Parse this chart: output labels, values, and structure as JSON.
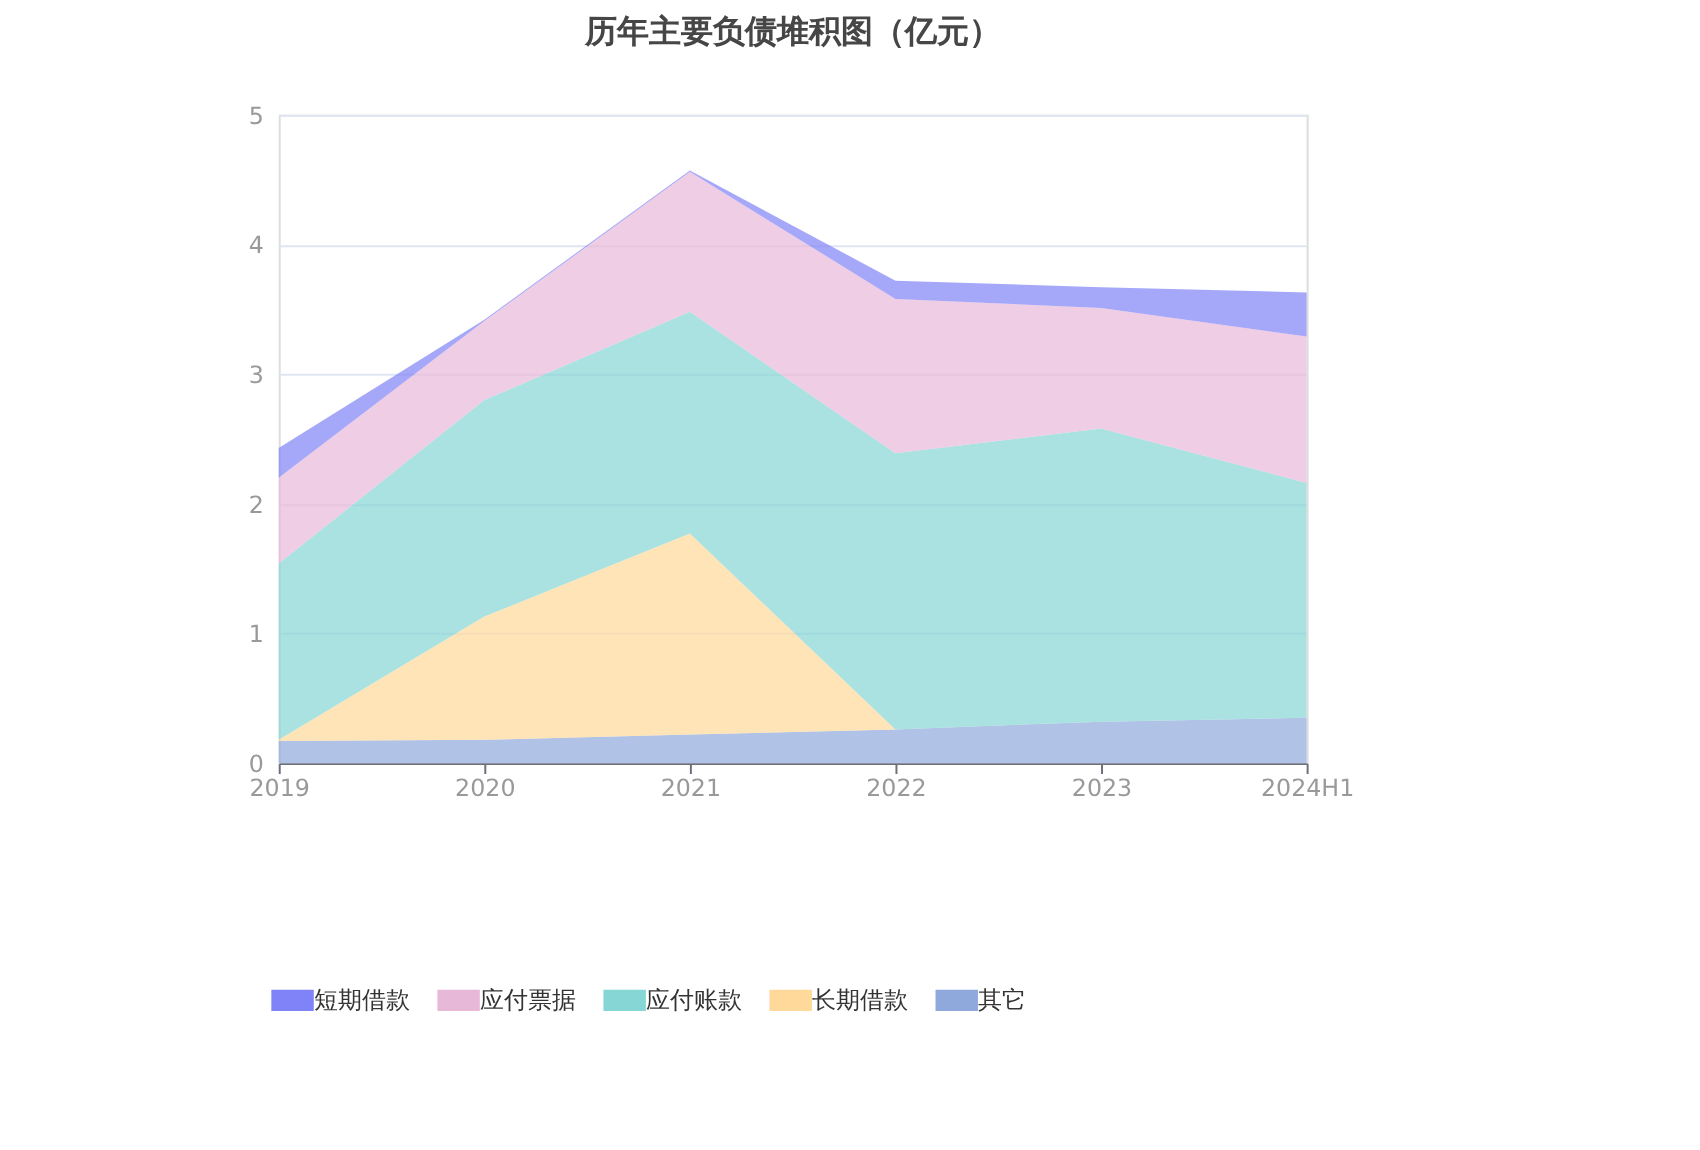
{
  "chart_data": {
    "type": "area",
    "title": "历年主要负债堆积图（亿元）",
    "stacked": true,
    "categories": [
      "2019",
      "2020",
      "2021",
      "2022",
      "2023",
      "2024H1"
    ],
    "series": [
      {
        "name": "其它",
        "color": "#8fa9dc",
        "values": [
          0.17,
          0.18,
          0.22,
          0.26,
          0.32,
          0.35
        ]
      },
      {
        "name": "长期借款",
        "color": "#ffd99a",
        "values": [
          0.01,
          0.95,
          1.55,
          0,
          0,
          0
        ]
      },
      {
        "name": "应付账款",
        "color": "#86d6d6",
        "values": [
          1.36,
          1.67,
          1.71,
          2.13,
          2.26,
          1.81
        ]
      },
      {
        "name": "应付票据",
        "color": "#e8b8d8",
        "values": [
          0.66,
          0.61,
          1.08,
          1.19,
          0.93,
          1.13
        ]
      },
      {
        "name": "短期借款",
        "color": "#7f83f7",
        "values": [
          0.23,
          0.01,
          0.01,
          0.14,
          0.16,
          0.34
        ]
      }
    ],
    "ylim": [
      0,
      5
    ],
    "yticks": [
      0,
      1,
      2,
      3,
      4,
      5
    ],
    "grid": "y",
    "legend": "bottom"
  }
}
